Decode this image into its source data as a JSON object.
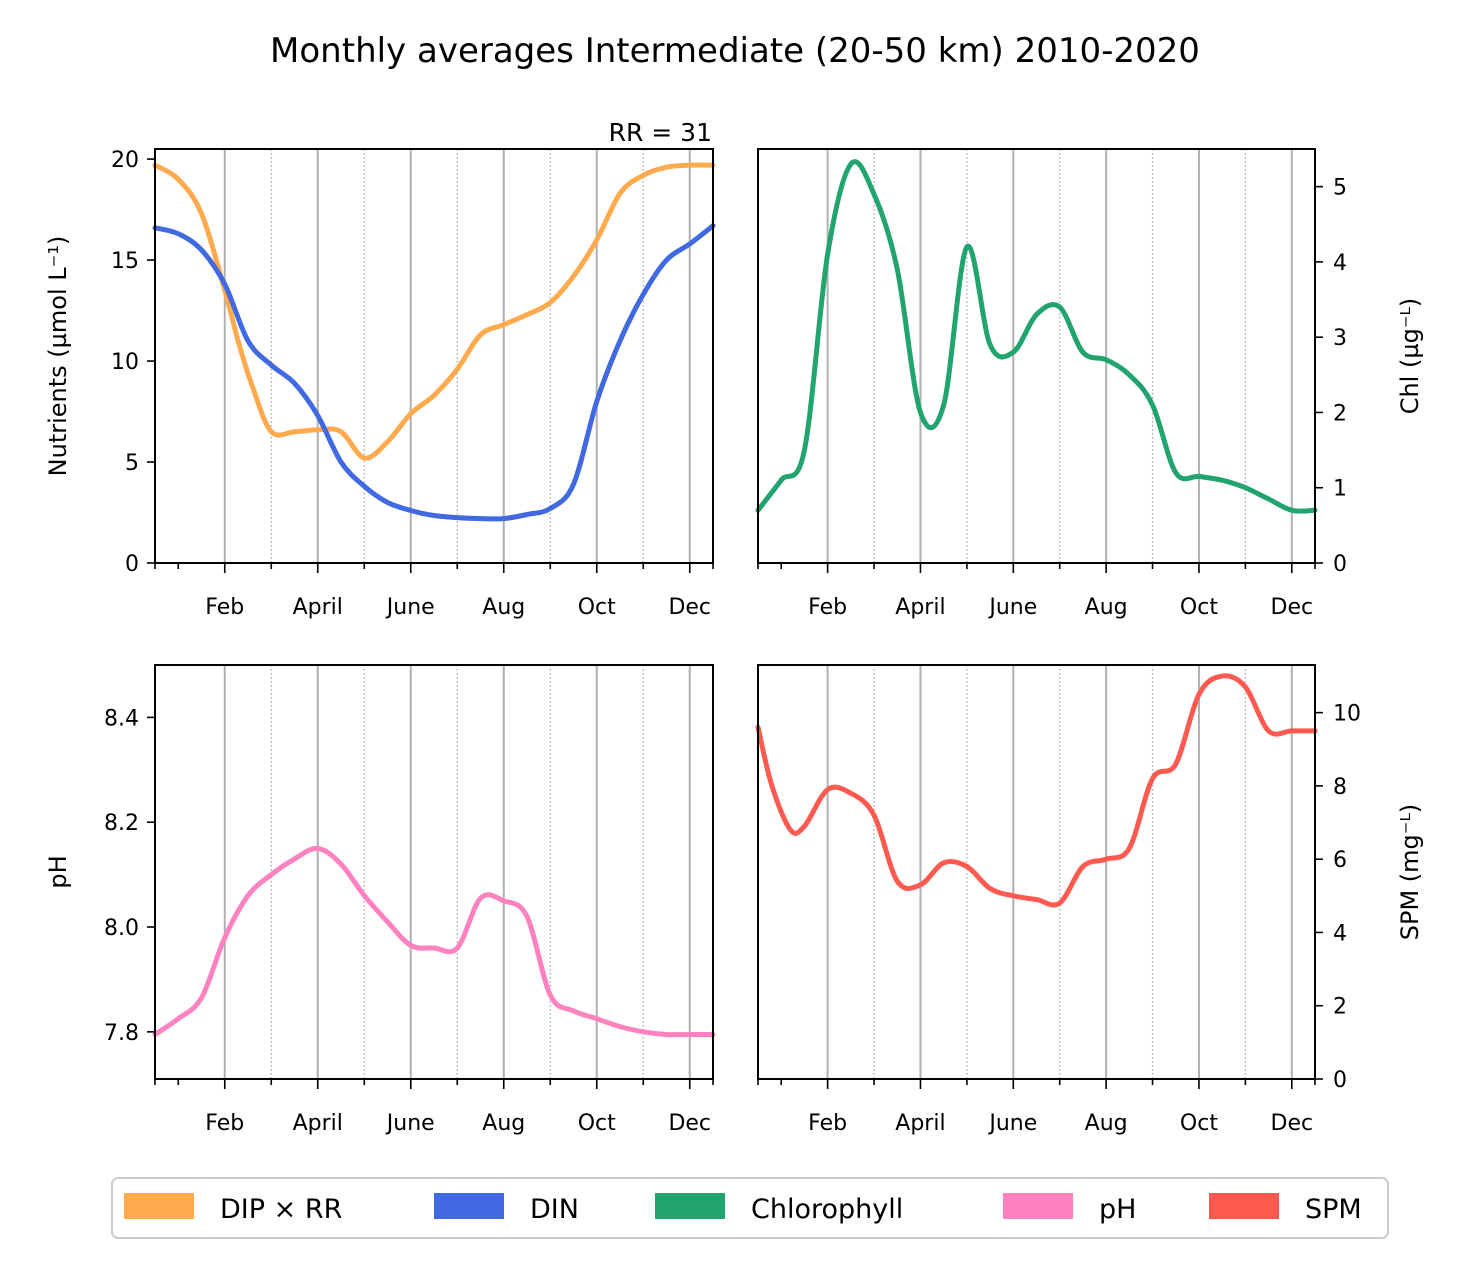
{
  "figure": {
    "title": "Monthly averages Intermediate (20-50 km) 2010-2020",
    "annotation": "RR = 31"
  },
  "legend": {
    "items": [
      {
        "label": "DIP × RR",
        "color": "#ffaa4d"
      },
      {
        "label": "DIN",
        "color": "#4169e1"
      },
      {
        "label": "Chlorophyll",
        "color": "#22a46e"
      },
      {
        "label": "pH",
        "color": "#ff82c0"
      },
      {
        "label": "SPM",
        "color": "#ff5a50"
      }
    ]
  },
  "chart_data": [
    {
      "type": "line",
      "x_ticks": [
        "Feb",
        "April",
        "June",
        "Aug",
        "Oct",
        "Dec"
      ],
      "ylabel": "Nutrients (µmol L⁻¹)",
      "ylim": [
        0,
        20.5
      ],
      "yticks": [
        0,
        5,
        10,
        15,
        20
      ],
      "y_axis_side": "left",
      "grid": "vertical: solid at labelled months, dotted in between",
      "xlim": [
        0.5,
        12.5
      ],
      "series": [
        {
          "name": "DIP × RR",
          "color": "#ffaa4d",
          "x": [
            0.5,
            1,
            1.5,
            2,
            2.3,
            2.6,
            3,
            3.5,
            4,
            4.5,
            5,
            5.5,
            6,
            6.5,
            7,
            7.5,
            8,
            8.5,
            9,
            9.5,
            10,
            10.5,
            11,
            11.5,
            12,
            12.5
          ],
          "y": [
            19.7,
            19.0,
            17.3,
            13.5,
            10.9,
            8.7,
            6.5,
            6.5,
            6.6,
            6.5,
            5.2,
            6.0,
            7.4,
            8.3,
            9.6,
            11.3,
            11.8,
            12.3,
            12.9,
            14.2,
            16.0,
            18.3,
            19.2,
            19.6,
            19.7,
            19.7
          ]
        },
        {
          "name": "DIN",
          "color": "#4169e1",
          "x": [
            0.5,
            1,
            1.5,
            2,
            2.5,
            3,
            3.5,
            4,
            4.5,
            5,
            5.5,
            6,
            6.5,
            7,
            7.5,
            8,
            8.5,
            9,
            9.5,
            10,
            10.5,
            11,
            11.5,
            12,
            12.5
          ],
          "y": [
            16.6,
            16.3,
            15.5,
            13.8,
            11.0,
            9.8,
            8.9,
            7.3,
            5.0,
            3.8,
            3.0,
            2.6,
            2.35,
            2.25,
            2.2,
            2.2,
            2.4,
            2.7,
            3.9,
            8.0,
            11.0,
            13.3,
            15.0,
            15.8,
            16.7
          ]
        }
      ]
    },
    {
      "type": "line",
      "x_ticks": [
        "Feb",
        "April",
        "June",
        "Aug",
        "Oct",
        "Dec"
      ],
      "ylabel": "Chl (µg⁻ᴸ)",
      "ylim": [
        0,
        5.5
      ],
      "yticks": [
        0,
        1,
        2,
        3,
        4,
        5
      ],
      "y_axis_side": "right",
      "grid": "vertical: solid at labelled months, dotted in between",
      "xlim": [
        0.5,
        12.5
      ],
      "series": [
        {
          "name": "Chlorophyll",
          "color": "#22a46e",
          "x": [
            0.5,
            1,
            1.5,
            2,
            2.5,
            3,
            3.5,
            4,
            4.5,
            5,
            5.5,
            6,
            6.5,
            7,
            7.5,
            8,
            8.5,
            9,
            9.5,
            10,
            10.5,
            11,
            11.5,
            12,
            12.5
          ],
          "y": [
            0.7,
            1.1,
            1.5,
            4.1,
            5.3,
            4.9,
            3.9,
            2.0,
            2.1,
            4.2,
            2.9,
            2.8,
            3.3,
            3.4,
            2.8,
            2.7,
            2.5,
            2.1,
            1.2,
            1.15,
            1.1,
            1.0,
            0.85,
            0.7,
            0.7
          ]
        }
      ]
    },
    {
      "type": "line",
      "x_ticks": [
        "Feb",
        "April",
        "June",
        "Aug",
        "Oct",
        "Dec"
      ],
      "ylabel": "pH",
      "ylim": [
        7.71,
        8.5
      ],
      "yticks": [
        7.8,
        8.0,
        8.2,
        8.4
      ],
      "y_axis_side": "left",
      "grid": "vertical: solid at labelled months, dotted in between",
      "xlim": [
        0.5,
        12.5
      ],
      "series": [
        {
          "name": "pH",
          "color": "#ff82c0",
          "x": [
            0.5,
            1,
            1.5,
            2,
            2.5,
            3,
            3.5,
            4,
            4.5,
            5,
            5.5,
            6,
            6.5,
            7,
            7.5,
            8,
            8.5,
            9,
            9.5,
            10,
            10.5,
            11,
            11.5,
            12,
            12.5
          ],
          "y": [
            7.795,
            7.825,
            7.865,
            7.98,
            8.06,
            8.1,
            8.13,
            8.15,
            8.12,
            8.06,
            8.01,
            7.965,
            7.96,
            7.96,
            8.055,
            8.05,
            8.02,
            7.87,
            7.84,
            7.825,
            7.81,
            7.8,
            7.795,
            7.795,
            7.795
          ]
        }
      ]
    },
    {
      "type": "line",
      "x_ticks": [
        "Feb",
        "April",
        "June",
        "Aug",
        "Oct",
        "Dec"
      ],
      "ylabel": "SPM (mg⁻ᴸ)",
      "ylim": [
        0,
        11.3
      ],
      "yticks": [
        0,
        2,
        4,
        6,
        8,
        10
      ],
      "y_axis_side": "right",
      "grid": "vertical: solid at labelled months, dotted in between",
      "xlim": [
        0.5,
        12.5
      ],
      "series": [
        {
          "name": "SPM",
          "color": "#ff5a50",
          "x": [
            0.5,
            0.8,
            1.2,
            1.5,
            2,
            2.5,
            3,
            3.5,
            4,
            4.5,
            5,
            5.5,
            6,
            6.5,
            7,
            7.5,
            8,
            8.5,
            9,
            9.5,
            10,
            10.5,
            11,
            11.5,
            12,
            12.5
          ],
          "y": [
            9.6,
            8.0,
            6.8,
            6.9,
            7.9,
            7.8,
            7.2,
            5.4,
            5.3,
            5.9,
            5.8,
            5.2,
            5.0,
            4.9,
            4.8,
            5.8,
            6.0,
            6.3,
            8.2,
            8.6,
            10.5,
            11.0,
            10.7,
            9.5,
            9.5,
            9.5
          ]
        }
      ]
    }
  ]
}
